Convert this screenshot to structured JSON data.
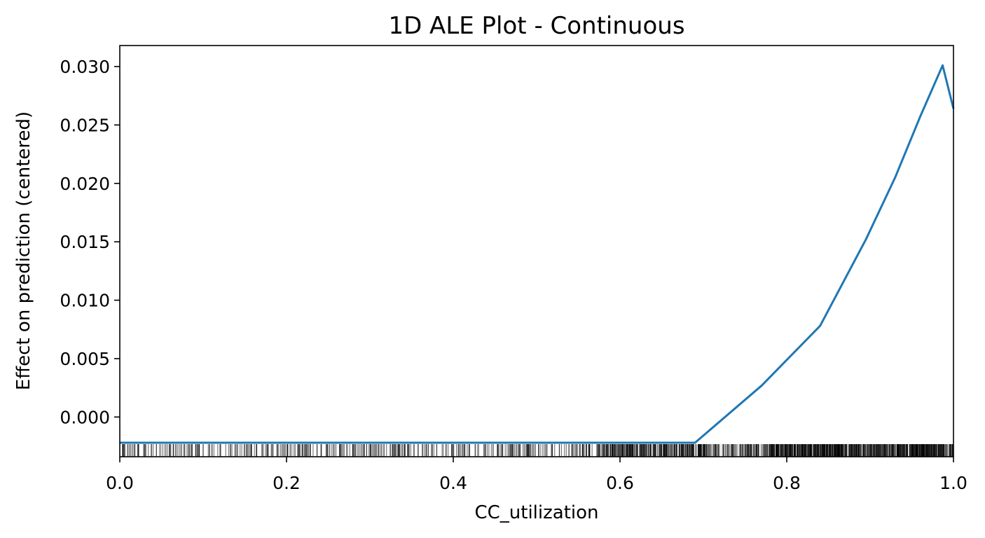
{
  "chart_data": {
    "type": "line",
    "title": "1D ALE Plot - Continuous",
    "xlabel": "CC_utilization",
    "ylabel": "Effect on prediction (centered)",
    "xlim": [
      0.0,
      1.0
    ],
    "ylim": [
      -0.0034,
      0.0318
    ],
    "x_ticks": [
      "0.0",
      "0.2",
      "0.4",
      "0.6",
      "0.8",
      "1.0"
    ],
    "y_ticks": [
      "0.000",
      "0.005",
      "0.010",
      "0.015",
      "0.020",
      "0.025",
      "0.030"
    ],
    "grid": false,
    "series": [
      {
        "color": "#1f77b4",
        "x": [
          0.0,
          0.69,
          0.77,
          0.84,
          0.895,
          0.93,
          0.96,
          0.987,
          1.0
        ],
        "y": [
          -0.0022,
          -0.0022,
          0.0027,
          0.0078,
          0.0152,
          0.0205,
          0.0257,
          0.0301,
          0.0264
        ]
      }
    ],
    "rug": {
      "color": "#000000",
      "description": "data distribution rug marks along x-axis, denser toward high CC_utilization"
    }
  }
}
